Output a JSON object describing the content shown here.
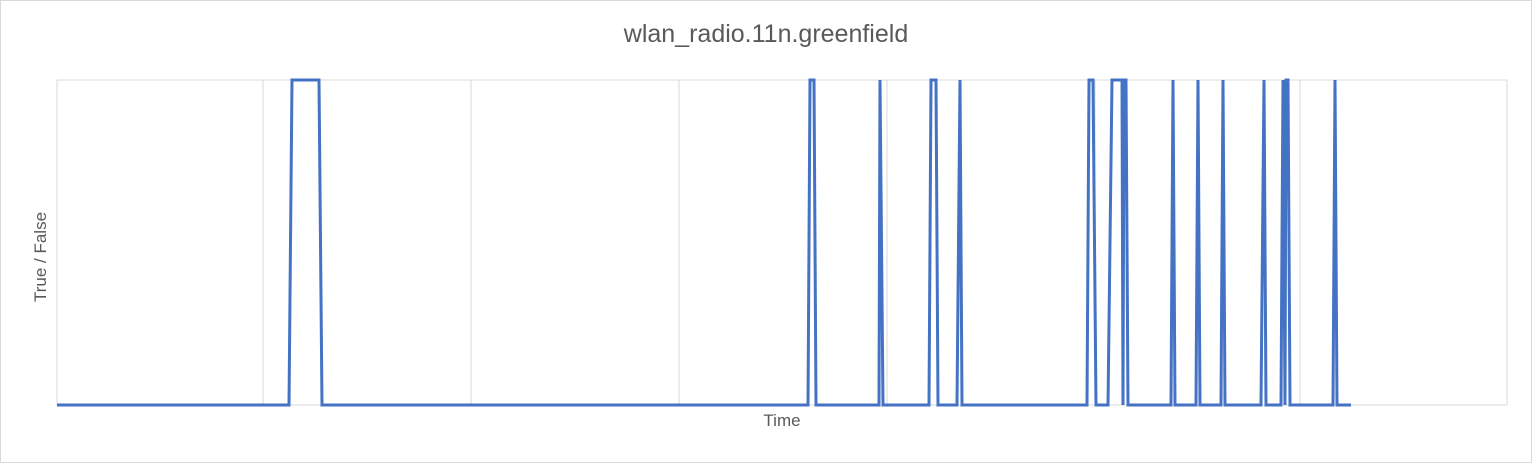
{
  "chart_data": {
    "type": "line",
    "title": "wlan_radio.11n.greenfield",
    "xlabel": "Time",
    "ylabel": "True / False",
    "ylim": [
      0,
      1
    ],
    "grid": true,
    "legend": "none",
    "series": [
      {
        "color": "#4472c4",
        "points": [
          [
            0,
            0
          ],
          [
            232,
            0
          ],
          [
            235,
            1
          ],
          [
            239,
            1
          ],
          [
            262,
            1
          ],
          [
            265,
            0
          ],
          [
            269,
            0
          ],
          [
            751,
            0
          ],
          [
            753,
            1
          ],
          [
            757,
            1
          ],
          [
            759,
            0
          ],
          [
            822,
            0
          ],
          [
            823,
            1
          ],
          [
            826,
            0
          ],
          [
            872,
            0
          ],
          [
            874,
            1
          ],
          [
            879,
            1
          ],
          [
            881,
            0
          ],
          [
            900,
            0
          ],
          [
            903,
            1
          ],
          [
            905,
            0
          ],
          [
            1030,
            0
          ],
          [
            1032,
            1
          ],
          [
            1036,
            1
          ],
          [
            1039,
            0
          ],
          [
            1051,
            0
          ],
          [
            1055,
            1
          ],
          [
            1063,
            1
          ],
          [
            1065,
            1
          ],
          [
            1066,
            0
          ],
          [
            1067,
            1
          ],
          [
            1069,
            1
          ],
          [
            1071,
            0
          ],
          [
            1114,
            0
          ],
          [
            1116,
            1
          ],
          [
            1118,
            0
          ],
          [
            1139,
            0
          ],
          [
            1141,
            1
          ],
          [
            1143,
            0
          ],
          [
            1164,
            0
          ],
          [
            1166,
            1
          ],
          [
            1168,
            0
          ],
          [
            1204,
            0
          ],
          [
            1207,
            1
          ],
          [
            1209,
            0
          ],
          [
            1224,
            0
          ],
          [
            1226,
            1
          ],
          [
            1228,
            0
          ],
          [
            1229,
            1
          ],
          [
            1231,
            1
          ],
          [
            1233,
            0
          ],
          [
            1276,
            0
          ],
          [
            1278,
            1
          ],
          [
            1280,
            0
          ],
          [
            1294,
            0
          ]
        ]
      }
    ]
  },
  "colors": {
    "series": "#4472c4",
    "grid": "#d9d9d9",
    "text": "#595959"
  }
}
